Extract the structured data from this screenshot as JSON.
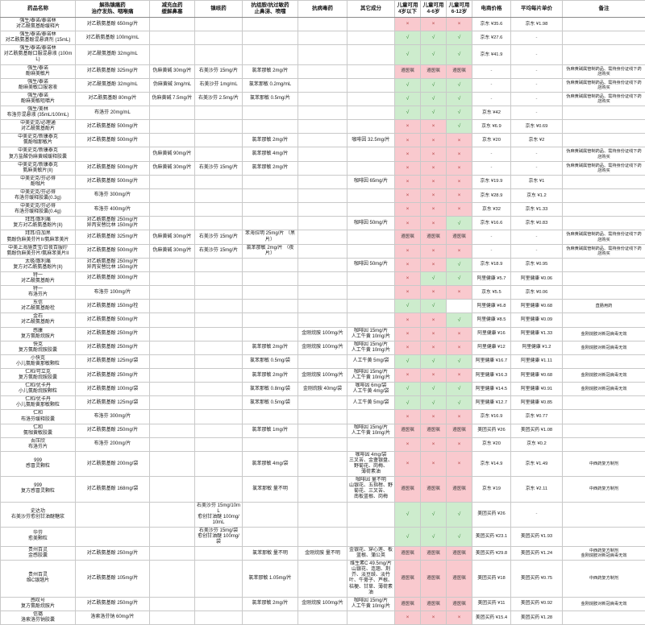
{
  "colors": {
    "green_cell": "#cdeccd",
    "pink_cell": "#f9c9ce",
    "check": "#3a8a3a",
    "cross": "#b34040"
  },
  "symbols": {
    "allowed": "√",
    "not_allowed": "×",
    "doctor": "遵医嘱",
    "empty_price": "-"
  },
  "table": {
    "columns": [
      "药品名称",
      "解热镇痛药\n治疗发热、咽喉痛",
      "减充血药\n缓解鼻塞",
      "镇咳药",
      "抗组胺/抗过敏药\n止鼻涕、喷嚏",
      "抗病毒药",
      "其它成分",
      "儿童可用\n4岁以下",
      "儿童可用\n4-6岁",
      "儿童可用\n6-12岁",
      "电商价格",
      "平均每片单价",
      "备注"
    ],
    "rows": [
      {
        "brand": "强生/泰诺/泰诺林",
        "product": "对乙酰氨基酚缓释片",
        "antipyretic": "对乙酰氨基酚 650mg/片",
        "decongestant": "",
        "cough": "",
        "antihistamine": "",
        "antiviral": "",
        "other": "",
        "age0_4": "×",
        "age4_6": "×",
        "age6_12": "×",
        "price": "京东 ¥35.6",
        "unit_price": "京东 ¥1.98",
        "note": "",
        "group_start": true
      },
      {
        "brand": "强生/泰诺/泰诺林",
        "product": "对乙酰氨基酚混悬滴剂 (15mL)",
        "antipyretic": "对乙酰氨基酚 100mg/mL",
        "decongestant": "",
        "cough": "",
        "antihistamine": "",
        "antiviral": "",
        "other": "",
        "age0_4": "√",
        "age4_6": "√",
        "age6_12": "√",
        "price": "京东 ¥27.6",
        "unit_price": "",
        "note": "",
        "group_start": false
      },
      {
        "brand": "强生/泰诺/泰诺林",
        "product": "对乙酰氨基酚口服混悬液 (100mL)",
        "antipyretic": "对乙酰氨基酚 32mg/mL",
        "decongestant": "",
        "cough": "",
        "antihistamine": "",
        "antiviral": "",
        "other": "",
        "age0_4": "√",
        "age4_6": "√",
        "age6_12": "√",
        "price": "京东 ¥41.9",
        "unit_price": "",
        "note": "",
        "group_start": false
      },
      {
        "brand": "强生/泰诺",
        "product": "酚麻美敏片",
        "antipyretic": "对乙酰氨基酚 325mg/片",
        "decongestant": "伪麻黄碱 30mg/片",
        "cough": "右美沙芬 15mg/片",
        "antihistamine": "氯苯那敏 2mg/片",
        "antiviral": "",
        "other": "",
        "age0_4": "遵医嘱",
        "age4_6": "遵医嘱",
        "age6_12": "遵医嘱",
        "price": "",
        "unit_price": "",
        "note": "伪麻黄碱属管制药品、需持身份证线下药店购买",
        "group_start": true
      },
      {
        "brand": "强生/泰诺",
        "product": "酚麻美敏口服溶液",
        "antipyretic": "对乙酰氨基酚 32mg/mL",
        "decongestant": "伪麻黄碱 3mg/mL",
        "cough": "右美沙芬 1mg/mL",
        "antihistamine": "氯苯那敏 0.2mg/mL",
        "antiviral": "",
        "other": "",
        "age0_4": "√",
        "age4_6": "√",
        "age6_12": "√",
        "price": "",
        "unit_price": "",
        "note": "伪麻黄碱属管制药品、需持身份证线下药店购买",
        "group_start": false
      },
      {
        "brand": "强生/泰诺",
        "product": "酚麻美敏咀嚼片",
        "antipyretic": "对乙酰氨基酚 80mg/片",
        "decongestant": "伪麻黄碱 7.5mg/片",
        "cough": "右美沙芬 2.5mg/片",
        "antihistamine": "氯苯那敏 0.5mg/片",
        "antiviral": "",
        "other": "",
        "age0_4": "√",
        "age4_6": "√",
        "age6_12": "√",
        "price": "",
        "unit_price": "",
        "note": "伪麻黄碱属管制药品、需持身份证线下药店购买",
        "group_start": false
      },
      {
        "brand": "强生/美林",
        "product": "布洛芬混悬液 (35mL/100mL)",
        "antipyretic": "布洛芬 20mg/mL",
        "decongestant": "",
        "cough": "",
        "antihistamine": "",
        "antiviral": "",
        "other": "",
        "age0_4": "√",
        "age4_6": "√",
        "age6_12": "√",
        "price": "京东 ¥42",
        "unit_price": "",
        "note": "",
        "group_start": true
      },
      {
        "brand": "中美史克/必理通",
        "product": "对乙酰氨基酚片",
        "antipyretic": "对乙酰氨基酚 500mg/片",
        "decongestant": "",
        "cough": "",
        "antihistamine": "",
        "antiviral": "",
        "other": "",
        "age0_4": "×",
        "age4_6": "×",
        "age6_12": "√",
        "price": "京东 ¥6.9",
        "unit_price": "京东 ¥0.69",
        "note": "",
        "group_start": true
      },
      {
        "brand": "中美史克/新康泰克",
        "product": "氨酚咖那敏片",
        "antipyretic": "对乙酰氨基酚 500mg/片",
        "decongestant": "",
        "cough": "",
        "antihistamine": "氯苯那敏 2mg/片",
        "antiviral": "",
        "other": "咖啡因 32.5mg/片",
        "age0_4": "×",
        "age4_6": "×",
        "age6_12": "×",
        "price": "京东 ¥20",
        "unit_price": "京东 ¥2",
        "note": "",
        "group_start": true
      },
      {
        "brand": "中美史克/新康泰克",
        "product": "复方盐酸伪麻黄碱缓释胶囊",
        "antipyretic": "",
        "decongestant": "伪麻黄碱 90mg/片",
        "cough": "",
        "antihistamine": "氯苯那敏 4mg/片",
        "antiviral": "",
        "other": "",
        "age0_4": "×",
        "age4_6": "×",
        "age6_12": "×",
        "price": "",
        "unit_price": "",
        "note": "伪麻黄碱属管制药品、需持身份证线下药店购买",
        "group_start": false
      },
      {
        "brand": "中美史克/新康泰克",
        "product": "氨麻美敏片(II)",
        "antipyretic": "对乙酰氨基酚 500mg/片",
        "decongestant": "伪麻黄碱 30mg/片",
        "cough": "右美沙芬 15mg/片",
        "antihistamine": "氯苯那敏 2mg/片",
        "antiviral": "",
        "other": "",
        "age0_4": "×",
        "age4_6": "×",
        "age6_12": "×",
        "price": "",
        "unit_price": "",
        "note": "伪麻黄碱属管制药品、需持身份证线下药店购买",
        "group_start": false
      },
      {
        "brand": "中美史克/芬必得",
        "product": "酚咖片",
        "antipyretic": "对乙酰氨基酚 500mg/片",
        "decongestant": "",
        "cough": "",
        "antihistamine": "",
        "antiviral": "",
        "other": "咖啡因 65mg/片",
        "age0_4": "×",
        "age4_6": "×",
        "age6_12": "×",
        "price": "京东 ¥19.9",
        "unit_price": "京东 ¥1",
        "note": "",
        "group_start": true
      },
      {
        "brand": "中美史克/芬必得",
        "product": "布洛芬缓释胶囊(0.3g)",
        "antipyretic": "布洛芬 300mg/片",
        "decongestant": "",
        "cough": "",
        "antihistamine": "",
        "antiviral": "",
        "other": "",
        "age0_4": "×",
        "age4_6": "×",
        "age6_12": "×",
        "price": "京东 ¥28.9",
        "unit_price": "京东 ¥1.2",
        "note": "",
        "group_start": false
      },
      {
        "brand": "中美史克/芬必得",
        "product": "布洛芬缓释胶囊(0.4g)",
        "antipyretic": "布洛芬 400mg/片",
        "decongestant": "",
        "cough": "",
        "antihistamine": "",
        "antiviral": "",
        "other": "",
        "age0_4": "×",
        "age4_6": "×",
        "age6_12": "×",
        "price": "京东 ¥32",
        "unit_price": "京东 ¥1.33",
        "note": "",
        "group_start": false
      },
      {
        "brand": "拜耳/散利痛",
        "product": "复方对乙酰氨基酚片(II)",
        "antipyretic": "对乙酰氨基酚 250mg/片\n异丙安替比林 150mg/片",
        "decongestant": "",
        "cough": "",
        "antihistamine": "",
        "antiviral": "",
        "other": "咖啡因 50mg/片",
        "age0_4": "×",
        "age4_6": "×",
        "age6_12": "√",
        "price": "京东 ¥16.6",
        "unit_price": "京东 ¥0.83",
        "note": "",
        "group_start": true
      },
      {
        "brand": "拜耳/白加黑",
        "product": "氨酚伪麻美芬片II/氨麻苯美片",
        "antipyretic": "对乙酰氨基酚 325mg/片",
        "decongestant": "伪麻黄碱 30mg/片",
        "cough": "右美沙芬 15mg/片",
        "antihistamine": "苯海拉明 25mg/片 （黑片）",
        "antiviral": "",
        "other": "",
        "age0_4": "遵医嘱",
        "age4_6": "遵医嘱",
        "age6_12": "遵医嘱",
        "price": "",
        "unit_price": "",
        "note": "伪麻黄碱属管制药品、需持身份证线下药店购买",
        "group_start": true
      },
      {
        "brand": "中美上海施贵宝/日夜百服咛",
        "product": "氨酚伪麻美芬片/氨麻苯美片II",
        "antipyretic": "对乙酰氨基酚 500mg/片",
        "decongestant": "伪麻黄碱 30mg/片",
        "cough": "右美沙芬 15mg/片",
        "antihistamine": "氯苯那敏 2mg/片 （夜片）",
        "antiviral": "",
        "other": "",
        "age0_4": "×",
        "age4_6": "×",
        "age6_12": "×",
        "price": "",
        "unit_price": "",
        "note": "伪麻黄碱属管制药品、需持身份证线下药店购买",
        "group_start": true
      },
      {
        "brand": "太极/散利痛",
        "product": "复方对乙酰氨基酚片(II)",
        "antipyretic": "对乙酰氨基酚 250mg/片\n异丙安替比林 150mg/片",
        "decongestant": "",
        "cough": "",
        "antihistamine": "",
        "antiviral": "",
        "other": "咖啡因 50mg/片",
        "age0_4": "×",
        "age4_6": "×",
        "age6_12": "√",
        "price": "京东 ¥18.9",
        "unit_price": "京东 ¥0.95",
        "note": "",
        "group_start": true
      },
      {
        "brand": "特一",
        "product": "对乙酰氨基酚片",
        "antipyretic": "对乙酰氨基酚 300mg/片",
        "decongestant": "",
        "cough": "",
        "antihistamine": "",
        "antiviral": "",
        "other": "",
        "age0_4": "×",
        "age4_6": "√",
        "age6_12": "√",
        "price": "阿里健康 ¥5.7",
        "unit_price": "阿里健康 ¥0.06",
        "note": "",
        "group_start": true
      },
      {
        "brand": "特一",
        "product": "布洛芬片",
        "antipyretic": "布洛芬 100mg/片",
        "decongestant": "",
        "cough": "",
        "antihistamine": "",
        "antiviral": "",
        "other": "",
        "age0_4": "×",
        "age4_6": "×",
        "age6_12": "×",
        "price": "京东 ¥5.5",
        "unit_price": "京东 ¥0.06",
        "note": "",
        "group_start": false
      },
      {
        "brand": "东信",
        "product": "对乙酰氨基酚栓",
        "antipyretic": "对乙酰氨基酚 150mg/栓",
        "decongestant": "",
        "cough": "",
        "antihistamine": "",
        "antiviral": "",
        "other": "",
        "age0_4": "√",
        "age4_6": "√",
        "age6_12": "",
        "price": "阿里健康 ¥6.8",
        "unit_price": "阿里健康 ¥0.68",
        "note": "直肠用药",
        "group_start": true
      },
      {
        "brand": "金石",
        "product": "对乙酰氨基酚片",
        "antipyretic": "对乙酰氨基酚 500mg/片",
        "decongestant": "",
        "cough": "",
        "antihistamine": "",
        "antiviral": "",
        "other": "",
        "age0_4": "×",
        "age4_6": "×",
        "age6_12": "√",
        "price": "阿里健康 ¥8.5",
        "unit_price": "阿里健康 ¥0.09",
        "note": "",
        "group_start": true
      },
      {
        "brand": "感康",
        "product": "复方氨酚烷胺片",
        "antipyretic": "对乙酰氨基酚 250mg/片",
        "decongestant": "",
        "cough": "",
        "antihistamine": "",
        "antiviral": "金刚烷胺 100mg/片",
        "other": "咖啡因 15mg/片\n人工牛黄 10mg/片",
        "age0_4": "×",
        "age4_6": "×",
        "age6_12": "×",
        "price": "阿里健康 ¥16",
        "unit_price": "阿里健康 ¥1.33",
        "note": "金刚烷胺对新冠病毒无效",
        "group_start": true
      },
      {
        "brand": "快克",
        "product": "复方氨酚烷胺胶囊",
        "antipyretic": "对乙酰氨基酚 250mg/片",
        "decongestant": "",
        "cough": "",
        "antihistamine": "氯苯那敏 2mg/片",
        "antiviral": "金刚烷胺 100mg/片",
        "other": "咖啡因 15mg/片\n人工牛黄 10mg/片",
        "age0_4": "×",
        "age4_6": "×",
        "age6_12": "×",
        "price": "阿里健康 ¥12",
        "unit_price": "阿里健康 ¥1.2",
        "note": "金刚烷胺对新冠病毒无效",
        "group_start": true
      },
      {
        "brand": "小快克",
        "product": "小儿氨酚黄那敏颗粒",
        "antipyretic": "对乙酰氨基酚 125mg/袋",
        "decongestant": "",
        "cough": "",
        "antihistamine": "氯苯那敏 0.5mg/袋",
        "antiviral": "",
        "other": "人工牛黄 5mg/袋",
        "age0_4": "√",
        "age4_6": "√",
        "age6_12": "√",
        "price": "阿里健康 ¥16.7",
        "unit_price": "阿里健康 ¥1.11",
        "note": "",
        "group_start": true
      },
      {
        "brand": "仁和/可立克",
        "product": "复方氨酚烷胺胶囊",
        "antipyretic": "对乙酰氨基酚 250mg/片",
        "decongestant": "",
        "cough": "",
        "antihistamine": "氯苯那敏 2mg/片",
        "antiviral": "金刚烷胺 100mg/片",
        "other": "咖啡因 15mg/片\n人工牛黄 10mg/片",
        "age0_4": "×",
        "age4_6": "×",
        "age6_12": "×",
        "price": "阿里健康 ¥16.3",
        "unit_price": "阿里健康 ¥0.68",
        "note": "金刚烷胺对新冠病毒无效",
        "group_start": true
      },
      {
        "brand": "仁和/优卡丹",
        "product": "小儿氨酚烷胺颗粒",
        "antipyretic": "对乙酰氨基酚 100mg/袋",
        "decongestant": "",
        "cough": "",
        "antihistamine": "氯苯那敏 0.8mg/袋",
        "antiviral": "金刚烷胺 40mg/袋",
        "other": "咖啡因 6mg/袋\n人工牛黄 4mg/袋",
        "age0_4": "√",
        "age4_6": "√",
        "age6_12": "√",
        "price": "阿里健康 ¥14.5",
        "unit_price": "阿里健康 ¥0.91",
        "note": "金刚烷胺对新冠病毒无效",
        "group_start": true
      },
      {
        "brand": "仁和/优卡丹",
        "product": "小儿氨酚黄那敏颗粒",
        "antipyretic": "对乙酰氨基酚 125mg/袋",
        "decongestant": "",
        "cough": "",
        "antihistamine": "氯苯那敏 0.5mg/袋",
        "antiviral": "",
        "other": "人工牛黄 5mg/袋",
        "age0_4": "√",
        "age4_6": "√",
        "age6_12": "√",
        "price": "阿里健康 ¥12.7",
        "unit_price": "阿里健康 ¥0.85",
        "note": "",
        "group_start": false
      },
      {
        "brand": "仁和",
        "product": "布洛芬缓释胶囊",
        "antipyretic": "布洛芬 300mg/片",
        "decongestant": "",
        "cough": "",
        "antihistamine": "",
        "antiviral": "",
        "other": "",
        "age0_4": "×",
        "age4_6": "×",
        "age6_12": "×",
        "price": "京东 ¥16.9",
        "unit_price": "京东 ¥0.77",
        "note": "",
        "group_start": true
      },
      {
        "brand": "仁和",
        "product": "氨咖黄敏胶囊",
        "antipyretic": "对乙酰氨基酚 250mg/片",
        "decongestant": "",
        "cough": "",
        "antihistamine": "氯苯那敏 1mg/片",
        "antiviral": "",
        "other": "咖啡因 15mg/片\n人工牛黄 10mg/片",
        "age0_4": "遵医嘱",
        "age4_6": "遵医嘱",
        "age6_12": "遵医嘱",
        "price": "美团买药 ¥26",
        "unit_price": "美团买药 ¥1.08",
        "note": "",
        "group_start": false
      },
      {
        "brand": "吾压欣",
        "product": "布洛芬片",
        "antipyretic": "布洛芬 200mg/片",
        "decongestant": "",
        "cough": "",
        "antihistamine": "",
        "antiviral": "",
        "other": "",
        "age0_4": "×",
        "age4_6": "×",
        "age6_12": "×",
        "price": "京东 ¥20",
        "unit_price": "京东 ¥0.2",
        "note": "",
        "group_start": true
      },
      {
        "brand": "999",
        "product": "感冒灵颗粒",
        "antipyretic": "对乙酰氨基酚 200mg/袋",
        "decongestant": "",
        "cough": "",
        "antihistamine": "氯苯那敏 4mg/袋",
        "antiviral": "",
        "other": "咖啡因 4mg/袋\n三叉苦、金盏银盘、野菊花、岗梅、\n薄荷素油",
        "age0_4": "×",
        "age4_6": "×",
        "age6_12": "×",
        "price": "京东 ¥14.9",
        "unit_price": "京东 ¥1.49",
        "note": "中西药复方制剂",
        "group_start": true
      },
      {
        "brand": "999",
        "product": "复方感冒灵颗粒",
        "antipyretic": "对乙酰氨基酚 168mg/袋",
        "decongestant": "",
        "cough": "",
        "antihistamine": "氯苯那敏 量不明",
        "antiviral": "",
        "other": "咖啡因 量不明\n山银花、五指柑、野菊花、三叉苦、\n南板蓝根、岗梅",
        "age0_4": "遵医嘱",
        "age4_6": "遵医嘱",
        "age6_12": "遵医嘱",
        "price": "京东 ¥19",
        "unit_price": "京东 ¥2.11",
        "note": "中西药复方制剂",
        "group_start": false
      },
      {
        "brand": "史达功",
        "product": "右美沙芬愈创甘油醚糖浆",
        "antipyretic": "",
        "decongestant": "",
        "cough": "右美沙芬 15mg/10mL\n愈创甘油醚 100mg/10mL",
        "antihistamine": "",
        "antiviral": "",
        "other": "",
        "age0_4": "√",
        "age4_6": "√",
        "age6_12": "√",
        "price": "美团买药 ¥26",
        "unit_price": "",
        "note": "",
        "group_start": true
      },
      {
        "brand": "华芬",
        "product": "愈美颗粒",
        "antipyretic": "",
        "decongestant": "",
        "cough": "右美沙芬 15mg/袋\n愈创甘油醚 100mg/袋",
        "antihistamine": "",
        "antiviral": "",
        "other": "",
        "age0_4": "√",
        "age4_6": "√",
        "age6_12": "√",
        "price": "美团买药 ¥23.1",
        "unit_price": "美团买药 ¥1.93",
        "note": "",
        "group_start": true
      },
      {
        "brand": "贵州百灵",
        "product": "金感胶囊",
        "antipyretic": "对乙酰氨基酚 250mg/片",
        "decongestant": "",
        "cough": "",
        "antihistamine": "氯苯那敏 量不明",
        "antiviral": "金刚烷胺 量不明",
        "other": "金银花、穿心莲、板蓝根、蒲公英",
        "age0_4": "遵医嘱",
        "age4_6": "遵医嘱",
        "age6_12": "遵医嘱",
        "price": "美团买药 ¥29.8",
        "unit_price": "美团买药 ¥1.24",
        "note": "中西药复方制剂\n金刚烷胺对新冠病毒无效",
        "group_start": true
      },
      {
        "brand": "贵州百灵",
        "product": "维C银翘片",
        "antipyretic": "对乙酰氨基酚 105mg/片",
        "decongestant": "",
        "cough": "",
        "antihistamine": "氯苯那敏 1.05mg/片",
        "antiviral": "",
        "other": "维生素C 49.5mg/片\n山银花、连翘、荆芥、淡豆豉、淡竹叶、牛蒡子、芦根、桔梗、甘草、薄荷素油",
        "age0_4": "遵医嘱",
        "age4_6": "遵医嘱",
        "age6_12": "遵医嘱",
        "price": "美团买药 ¥18",
        "unit_price": "美团买药 ¥0.75",
        "note": "中西药复方制剂",
        "group_start": false
      },
      {
        "brand": "感叹号",
        "product": "复方氨酚烷胺片",
        "antipyretic": "对乙酰氨基酚 250mg/片",
        "decongestant": "",
        "cough": "",
        "antihistamine": "氯苯那敏 2mg/片",
        "antiviral": "金刚烷胺 100mg/片",
        "other": "咖啡因 15mg/片\n人工牛黄 10mg/片",
        "age0_4": "遵医嘱",
        "age4_6": "遵医嘱",
        "age6_12": "遵医嘱",
        "price": "美团买药 ¥11",
        "unit_price": "美团买药 ¥0.92",
        "note": "金刚烷胺对新冠病毒无效",
        "group_start": true
      },
      {
        "brand": "信璐",
        "product": "洛索洛芬钠胶囊",
        "antipyretic": "洛索洛芬钠 60mg/片",
        "decongestant": "",
        "cough": "",
        "antihistamine": "",
        "antiviral": "",
        "other": "",
        "age0_4": "×",
        "age4_6": "×",
        "age6_12": "×",
        "price": "美团买药 ¥15.4",
        "unit_price": "美团买药 ¥1.28",
        "note": "",
        "group_start": true
      }
    ]
  }
}
